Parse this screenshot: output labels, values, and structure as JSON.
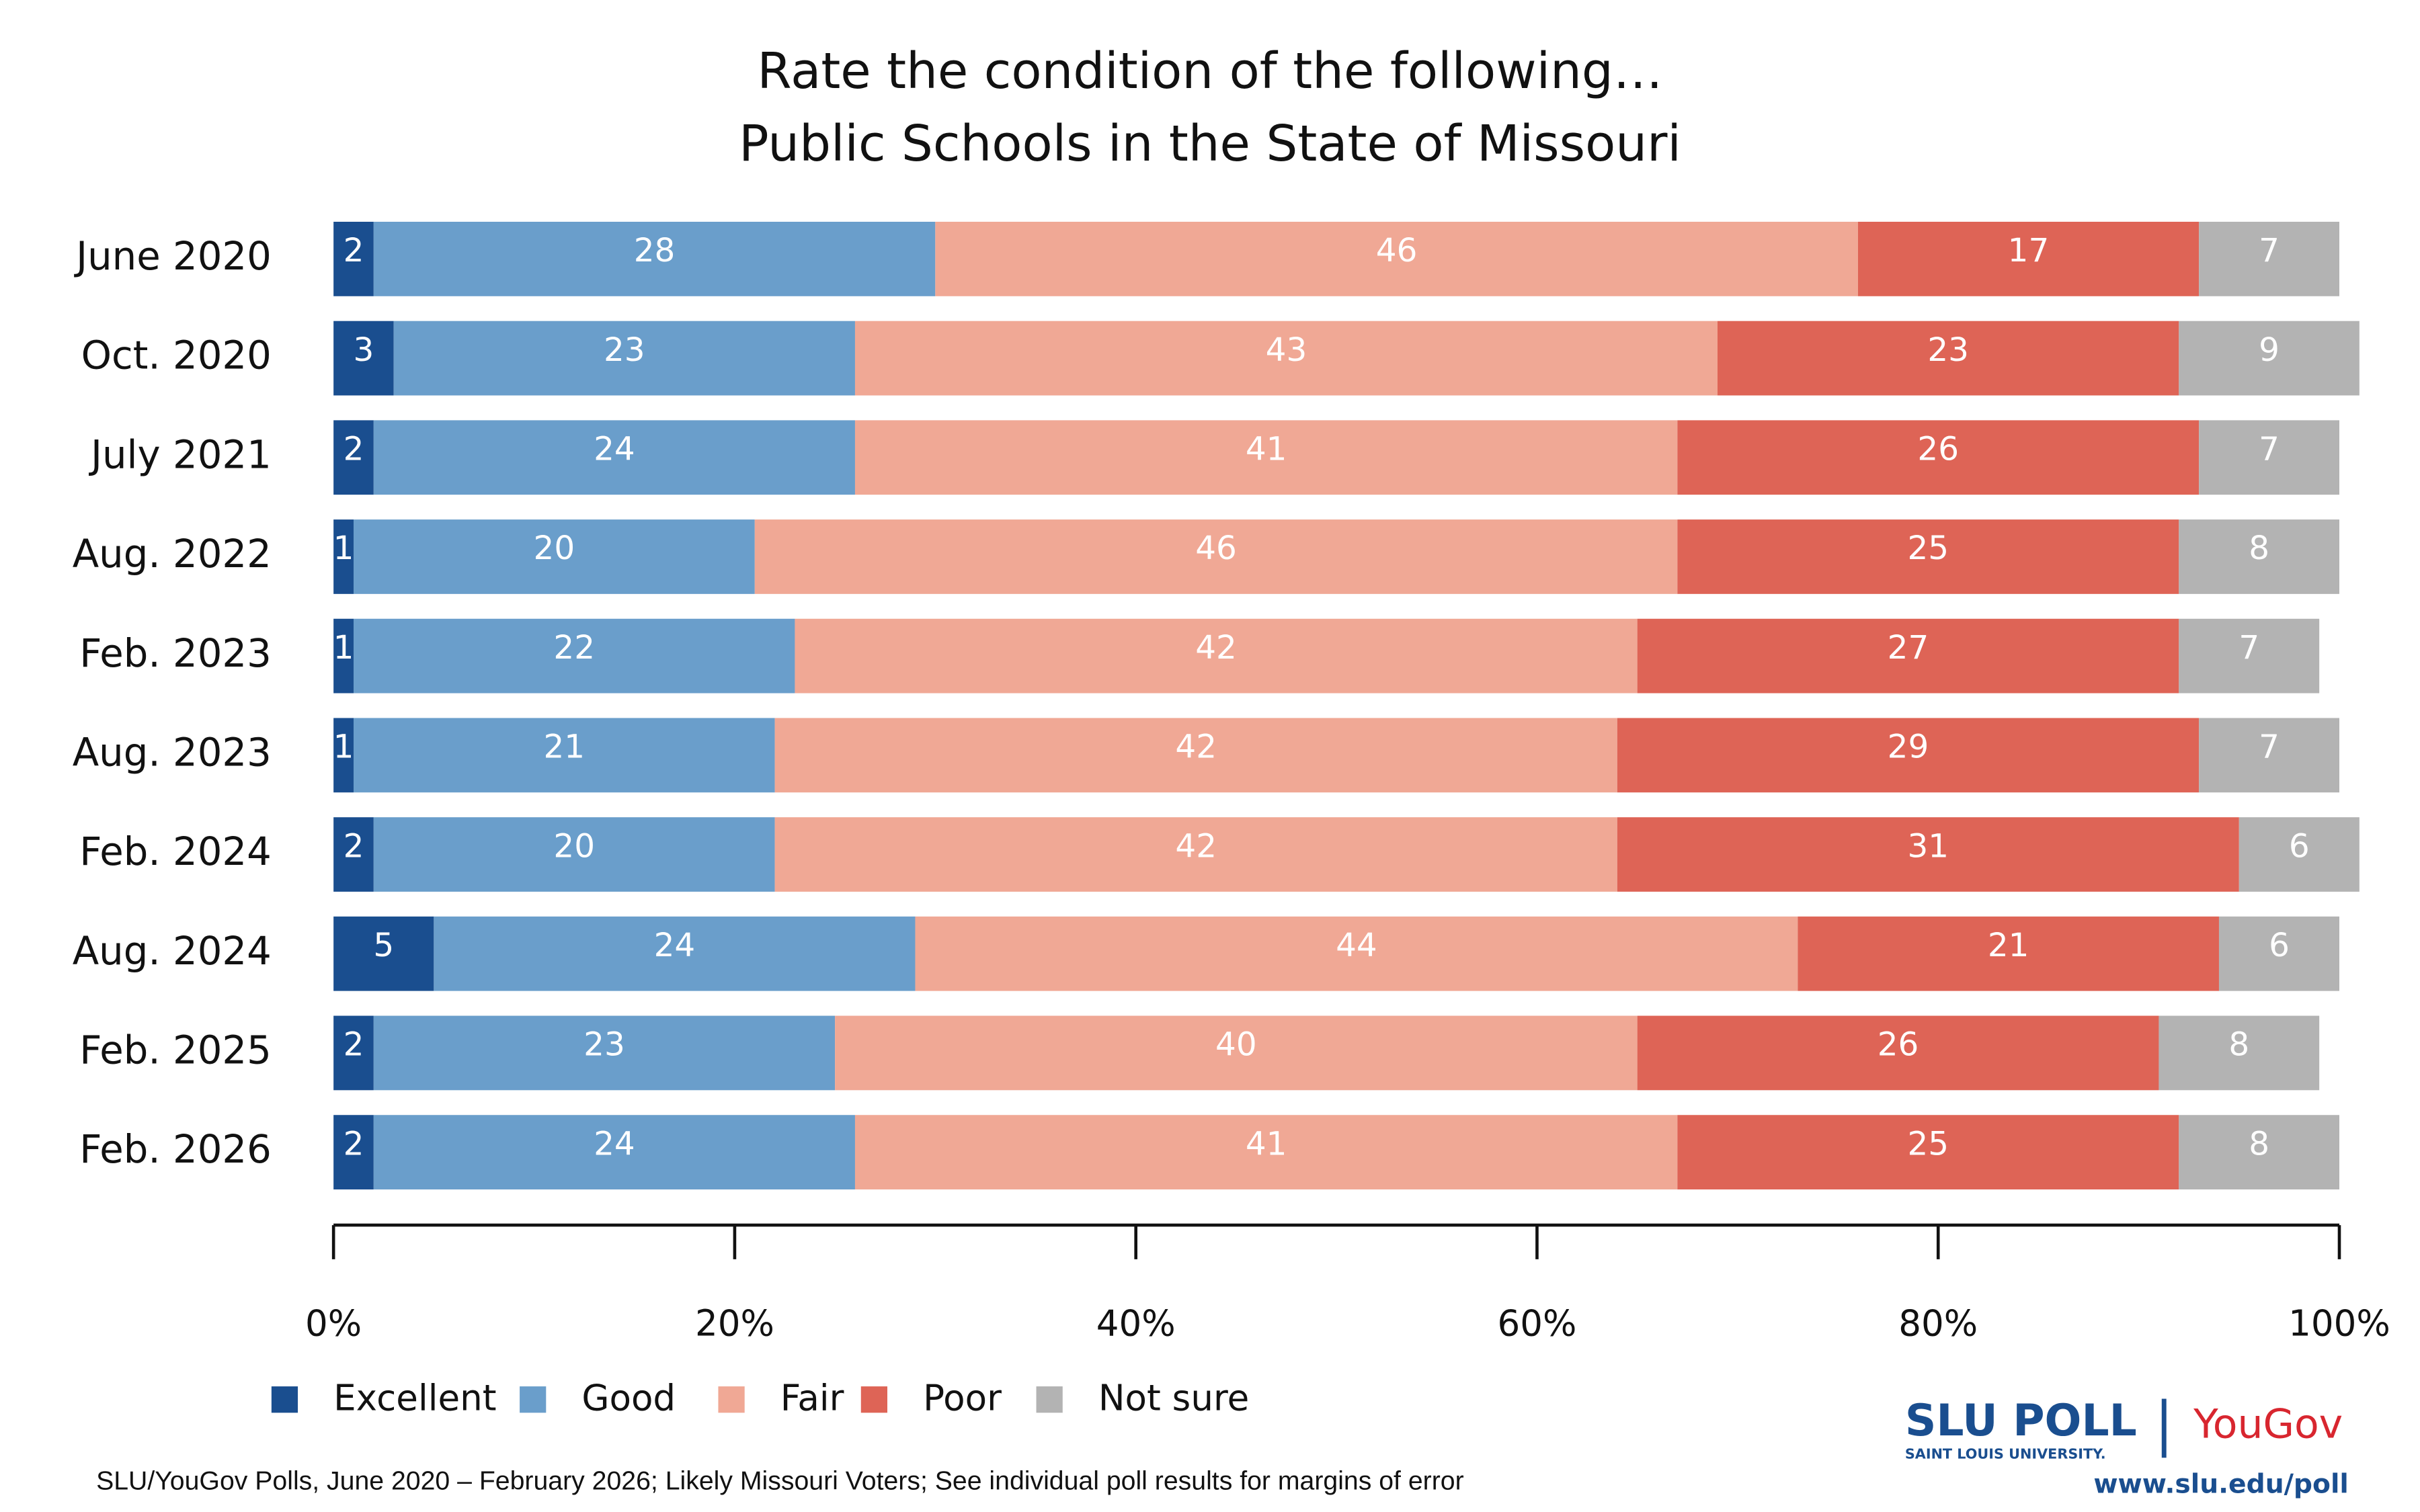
{
  "chart_data": {
    "type": "stacked-barh",
    "title": "Rate the condition of the following…",
    "subtitle": "Public Schools in the State of Missouri",
    "categories": [
      "June 2020",
      "Oct. 2020",
      "July 2021",
      "Aug. 2022",
      "Feb. 2023",
      "Aug. 2023",
      "Feb. 2024",
      "Aug. 2024",
      "Feb. 2025",
      "Feb. 2026"
    ],
    "series": [
      {
        "name": "Excellent",
        "color": "#1a4e8f",
        "values": [
          2,
          3,
          2,
          1,
          1,
          1,
          2,
          5,
          2,
          2
        ]
      },
      {
        "name": "Good",
        "color": "#6a9ecb",
        "values": [
          28,
          23,
          24,
          20,
          22,
          21,
          20,
          24,
          23,
          24
        ]
      },
      {
        "name": "Fair",
        "color": "#f0a895",
        "values": [
          46,
          43,
          41,
          46,
          42,
          42,
          42,
          44,
          40,
          41
        ]
      },
      {
        "name": "Poor",
        "color": "#de6456",
        "values": [
          17,
          23,
          26,
          25,
          27,
          29,
          31,
          21,
          26,
          25
        ]
      },
      {
        "name": "Not sure",
        "color": "#b3b3b3",
        "values": [
          7,
          9,
          7,
          8,
          7,
          7,
          6,
          6,
          8,
          8
        ]
      }
    ],
    "xlim": [
      0,
      100
    ],
    "xticks": [
      {
        "value": 0,
        "label": "0%"
      },
      {
        "value": 20,
        "label": "20%"
      },
      {
        "value": 40,
        "label": "40%"
      },
      {
        "value": 60,
        "label": "60%"
      },
      {
        "value": 80,
        "label": "80%"
      },
      {
        "value": 100,
        "label": "100%"
      }
    ],
    "source": "SLU/YouGov Polls, June 2020 – February 2026; Likely Missouri Voters; See individual poll results for margins of error",
    "branding": [
      "SLU POLL",
      "SAINT LOUIS UNIVERSITY.",
      "YouGov",
      "www.slu.edu/poll"
    ]
  }
}
